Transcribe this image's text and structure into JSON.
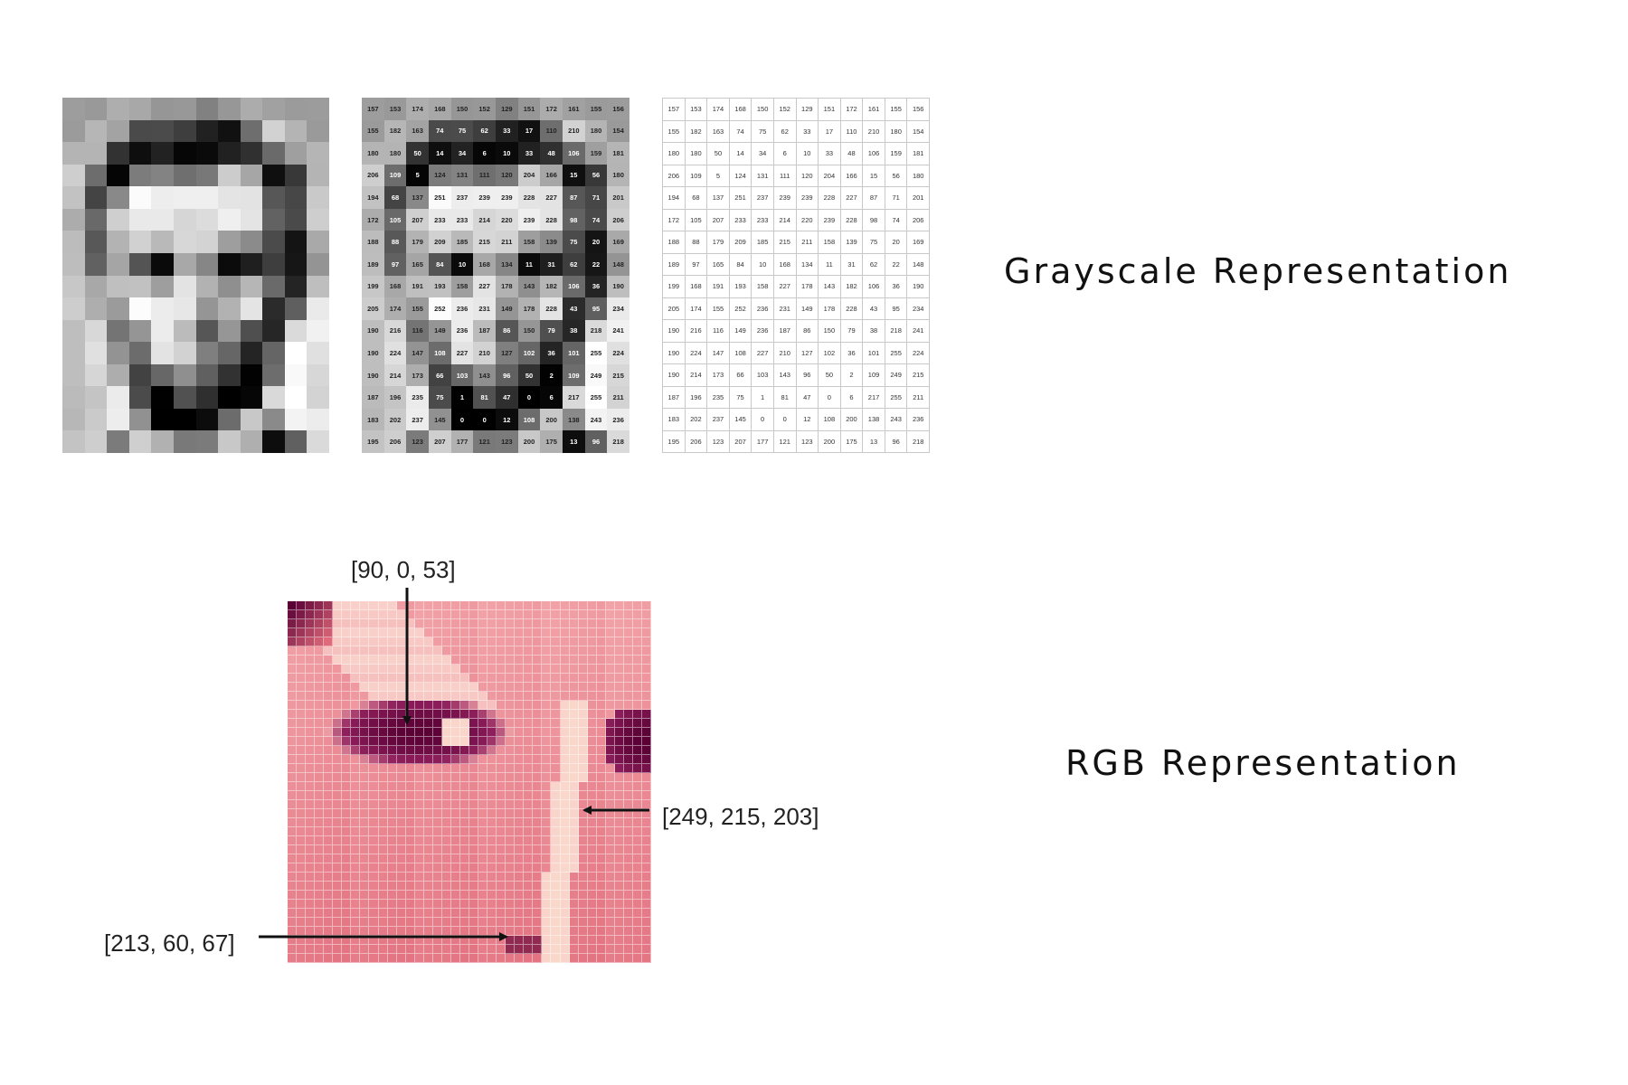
{
  "grayscale": {
    "caption": "Grayscale Representation",
    "values": [
      [
        157,
        153,
        174,
        168,
        150,
        152,
        129,
        151,
        172,
        161,
        155,
        156
      ],
      [
        155,
        182,
        163,
        74,
        75,
        62,
        33,
        17,
        110,
        210,
        180,
        154
      ],
      [
        180,
        180,
        50,
        14,
        34,
        6,
        10,
        33,
        48,
        106,
        159,
        181
      ],
      [
        206,
        109,
        5,
        124,
        131,
        111,
        120,
        204,
        166,
        15,
        56,
        180
      ],
      [
        194,
        68,
        137,
        251,
        237,
        239,
        239,
        228,
        227,
        87,
        71,
        201
      ],
      [
        172,
        105,
        207,
        233,
        233,
        214,
        220,
        239,
        228,
        98,
        74,
        206
      ],
      [
        188,
        88,
        179,
        209,
        185,
        215,
        211,
        158,
        139,
        75,
        20,
        169
      ],
      [
        189,
        97,
        165,
        84,
        10,
        168,
        134,
        11,
        31,
        62,
        22,
        148
      ],
      [
        199,
        168,
        191,
        193,
        158,
        227,
        178,
        143,
        182,
        106,
        36,
        190
      ],
      [
        205,
        174,
        155,
        252,
        236,
        231,
        149,
        178,
        228,
        43,
        95,
        234
      ],
      [
        190,
        216,
        116,
        149,
        236,
        187,
        86,
        150,
        79,
        38,
        218,
        241
      ],
      [
        190,
        224,
        147,
        108,
        227,
        210,
        127,
        102,
        36,
        101,
        255,
        224
      ],
      [
        190,
        214,
        173,
        66,
        103,
        143,
        96,
        50,
        2,
        109,
        249,
        215
      ],
      [
        187,
        196,
        235,
        75,
        1,
        81,
        47,
        0,
        6,
        217,
        255,
        211
      ],
      [
        183,
        202,
        237,
        145,
        0,
        0,
        12,
        108,
        200,
        138,
        243,
        236
      ],
      [
        195,
        206,
        123,
        207,
        177,
        121,
        123,
        200,
        175,
        13,
        96,
        218
      ]
    ]
  },
  "rgb": {
    "caption": "RGB Representation",
    "labels": {
      "top": "[90, 0, 53]",
      "right": "[249, 215, 203]",
      "left": "[213, 60, 67]"
    },
    "colors": {
      "skin": "#f2a3a8",
      "skin_dark": "#e06a7a",
      "skin_light": "#f8cfc9",
      "eye": "#8e1f5c",
      "eye_dark": "#5a0035",
      "highlight": "#f9d7cb"
    }
  }
}
